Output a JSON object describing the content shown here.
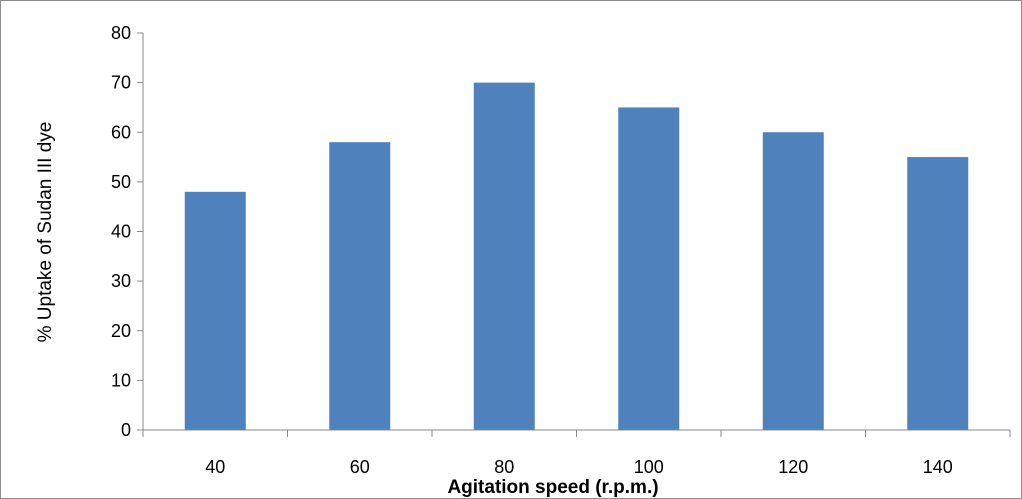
{
  "chart_data": {
    "type": "bar",
    "categories": [
      "40",
      "60",
      "80",
      "100",
      "120",
      "140"
    ],
    "values": [
      48,
      58,
      70,
      65,
      60,
      55
    ],
    "title": "",
    "xlabel": "Agitation speed (r.p.m.)",
    "ylabel": "% Uptake of Sudan III dye",
    "ylim": [
      0,
      80
    ],
    "yticks": [
      "0",
      "10",
      "20",
      "30",
      "40",
      "50",
      "60",
      "70",
      "80"
    ],
    "grid": false,
    "legend": "none",
    "bar_color": "#4F81BD"
  }
}
